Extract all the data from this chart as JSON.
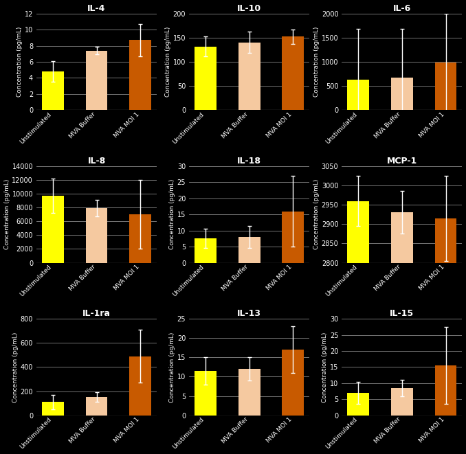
{
  "subplots": [
    {
      "title": "IL-4",
      "ylabel": "Concentration (pg/mL)",
      "ylim": [
        0,
        12
      ],
      "yticks": [
        0,
        2,
        4,
        6,
        8,
        10,
        12
      ],
      "bars": [
        4.8,
        7.4,
        8.7
      ],
      "errors": [
        1.3,
        0.5,
        2.0
      ]
    },
    {
      "title": "IL-10",
      "ylabel": "Concentration (pg/mL)",
      "ylim": [
        0,
        200
      ],
      "yticks": [
        0,
        50,
        100,
        150,
        200
      ],
      "bars": [
        132,
        140,
        152
      ],
      "errors": [
        20,
        22,
        15
      ]
    },
    {
      "title": "IL-6",
      "ylabel": "Concentration (pg/mL)",
      "ylim": [
        0,
        2000
      ],
      "yticks": [
        0,
        500,
        1000,
        1500,
        2000
      ],
      "bars": [
        630,
        680,
        980
      ],
      "errors": [
        1050,
        1000,
        1010
      ]
    },
    {
      "title": "IL-8",
      "ylabel": "Concentration (pg/mL)",
      "ylim": [
        0,
        14000
      ],
      "yticks": [
        0,
        2000,
        4000,
        6000,
        8000,
        10000,
        12000,
        14000
      ],
      "bars": [
        9700,
        7900,
        7000
      ],
      "errors": [
        2500,
        1200,
        5000
      ]
    },
    {
      "title": "IL-18",
      "ylabel": "Concentration (pg/mL)",
      "ylim": [
        0,
        30
      ],
      "yticks": [
        0,
        5,
        10,
        15,
        20,
        25,
        30
      ],
      "bars": [
        7.5,
        8.0,
        16.0
      ],
      "errors": [
        3.0,
        3.5,
        11.0
      ]
    },
    {
      "title": "MCP-1",
      "ylabel": "Concentration (pg/mL)",
      "ylim": [
        2800,
        3050
      ],
      "yticks": [
        2800,
        2850,
        2900,
        2950,
        3000,
        3050
      ],
      "bars": [
        2960,
        2930,
        2915
      ],
      "errors": [
        65,
        55,
        110
      ]
    },
    {
      "title": "IL-1ra",
      "ylabel": "Concentration (pg/mL)",
      "ylim": [
        0,
        800
      ],
      "yticks": [
        0,
        200,
        400,
        600,
        800
      ],
      "bars": [
        110,
        150,
        490
      ],
      "errors": [
        60,
        40,
        220
      ]
    },
    {
      "title": "IL-13",
      "ylabel": "Concentration (pg/mL)",
      "ylim": [
        0,
        25
      ],
      "yticks": [
        0,
        5,
        10,
        15,
        20,
        25
      ],
      "bars": [
        11.5,
        12.0,
        17.0
      ],
      "errors": [
        3.5,
        3.0,
        6.0
      ]
    },
    {
      "title": "IL-15",
      "ylabel": "Concentration (pg/mL)",
      "ylim": [
        0,
        30
      ],
      "yticks": [
        0,
        5,
        10,
        15,
        20,
        25,
        30
      ],
      "bars": [
        7.0,
        8.5,
        15.5
      ],
      "errors": [
        3.5,
        2.5,
        12.0
      ]
    }
  ],
  "bar_colors": [
    "#FFFF00",
    "#F5C9A0",
    "#C85A00"
  ],
  "categories": [
    "Unstimulated",
    "MVA Buffer",
    "MVA MOI 1"
  ],
  "background_color": "#000000",
  "text_color": "#ffffff",
  "grid_color": "#888888",
  "error_color": "#ffffff",
  "title_fontsize": 9,
  "label_fontsize": 6.5,
  "tick_fontsize": 7,
  "xtick_fontsize": 6.5
}
